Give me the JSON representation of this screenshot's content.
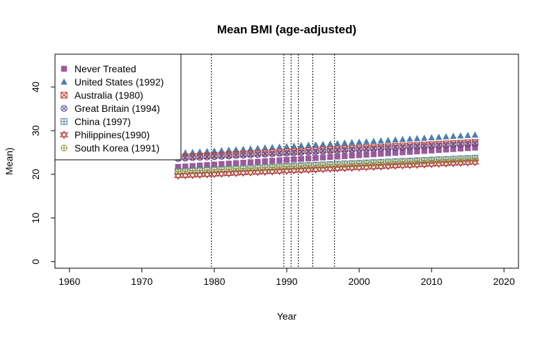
{
  "chart_data": {
    "type": "scatter",
    "title": "Mean BMI (age-adjusted)",
    "xlabel": "Year",
    "ylabel": "Mean)",
    "xlim": [
      1958,
      2022
    ],
    "ylim": [
      -1.5,
      47.5
    ],
    "xticks": [
      1960,
      1970,
      1980,
      1990,
      2000,
      2010,
      2020
    ],
    "yticks": [
      0,
      10,
      20,
      30,
      40
    ],
    "vlines": [
      1979.6,
      1989.6,
      1990.6,
      1991.6,
      1993.6,
      1996.6
    ],
    "legend_position": "top-left",
    "x": [
      1975,
      1976,
      1977,
      1978,
      1979,
      1980,
      1981,
      1982,
      1983,
      1984,
      1985,
      1986,
      1987,
      1988,
      1989,
      1990,
      1991,
      1992,
      1993,
      1994,
      1995,
      1996,
      1997,
      1998,
      1999,
      2000,
      2001,
      2002,
      2003,
      2004,
      2005,
      2006,
      2007,
      2008,
      2009,
      2010,
      2011,
      2012,
      2013,
      2014,
      2015,
      2016
    ],
    "series": [
      {
        "name": "Never Treated",
        "marker": "square",
        "color": "#9b5a9b",
        "start": 21.7,
        "end": 26.1
      },
      {
        "name": "United States (1992)",
        "marker": "triangle",
        "color": "#4a7fb0",
        "start": 24.8,
        "end": 29.0
      },
      {
        "name": "Australia (1980)",
        "marker": "box-x",
        "color": "#c0392b",
        "start": 23.9,
        "end": 27.3
      },
      {
        "name": "Great Britain (1994)",
        "marker": "circle-x",
        "color": "#4a4a9b",
        "start": 23.6,
        "end": 27.0
      },
      {
        "name": "China (1997)",
        "marker": "box-plus",
        "color": "#4a7f9b",
        "start": 20.7,
        "end": 23.7
      },
      {
        "name": "Philippines(1990)",
        "marker": "star-tri",
        "color": "#b03030",
        "start": 19.7,
        "end": 22.8
      },
      {
        "name": "South Korea (1991)",
        "marker": "circle-plus",
        "color": "#9b9b3a",
        "start": 20.6,
        "end": 23.5
      }
    ]
  }
}
